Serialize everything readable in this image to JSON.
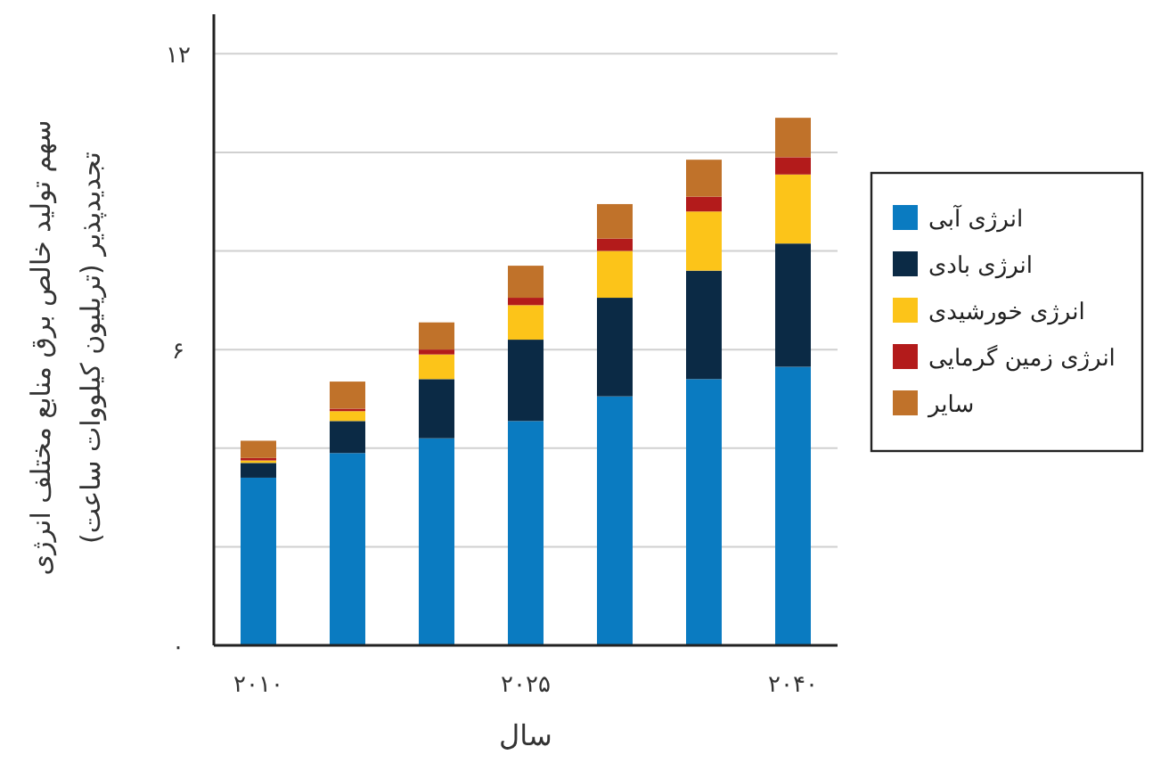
{
  "chart_data": {
    "type": "bar",
    "stacked": true,
    "xlabel": "سال",
    "ylabel": "سهم تولید خالص برق منابع مختلف انرژی\nتجدیدپذیر (تریلیون کیلووات ساعت)",
    "categories": [
      "۲۰۱۰",
      null,
      null,
      "۲۰۲۵",
      null,
      null,
      "۲۰۴۰"
    ],
    "series": [
      {
        "name": "انرژی آبی",
        "color": "#0a7bc1",
        "values": [
          3.4,
          3.9,
          4.2,
          4.55,
          5.05,
          5.4,
          5.65
        ]
      },
      {
        "name": "انرژی بادی",
        "color": "#0b2a45",
        "values": [
          0.3,
          0.65,
          1.2,
          1.65,
          2.0,
          2.2,
          2.5
        ]
      },
      {
        "name": "انرژی خورشیدی",
        "color": "#fcc419",
        "values": [
          0.05,
          0.2,
          0.5,
          0.7,
          0.95,
          1.2,
          1.4
        ]
      },
      {
        "name": "انرژی زمین گرمایی",
        "color": "#b31b1b",
        "values": [
          0.05,
          0.05,
          0.1,
          0.15,
          0.25,
          0.3,
          0.35
        ]
      },
      {
        "name": "سایر",
        "color": "#c0722a",
        "values": [
          0.35,
          0.55,
          0.55,
          0.65,
          0.7,
          0.75,
          0.8
        ]
      }
    ],
    "ylim": [
      0,
      12.8
    ],
    "yticks": [
      {
        "value": 0,
        "label": "۰"
      },
      {
        "value": 2,
        "label": null
      },
      {
        "value": 4,
        "label": null
      },
      {
        "value": 6,
        "label": "۶"
      },
      {
        "value": 8,
        "label": null
      },
      {
        "value": 10,
        "label": null
      },
      {
        "value": 12,
        "label": "۱۲"
      }
    ],
    "grid": "y",
    "legend": "right"
  }
}
